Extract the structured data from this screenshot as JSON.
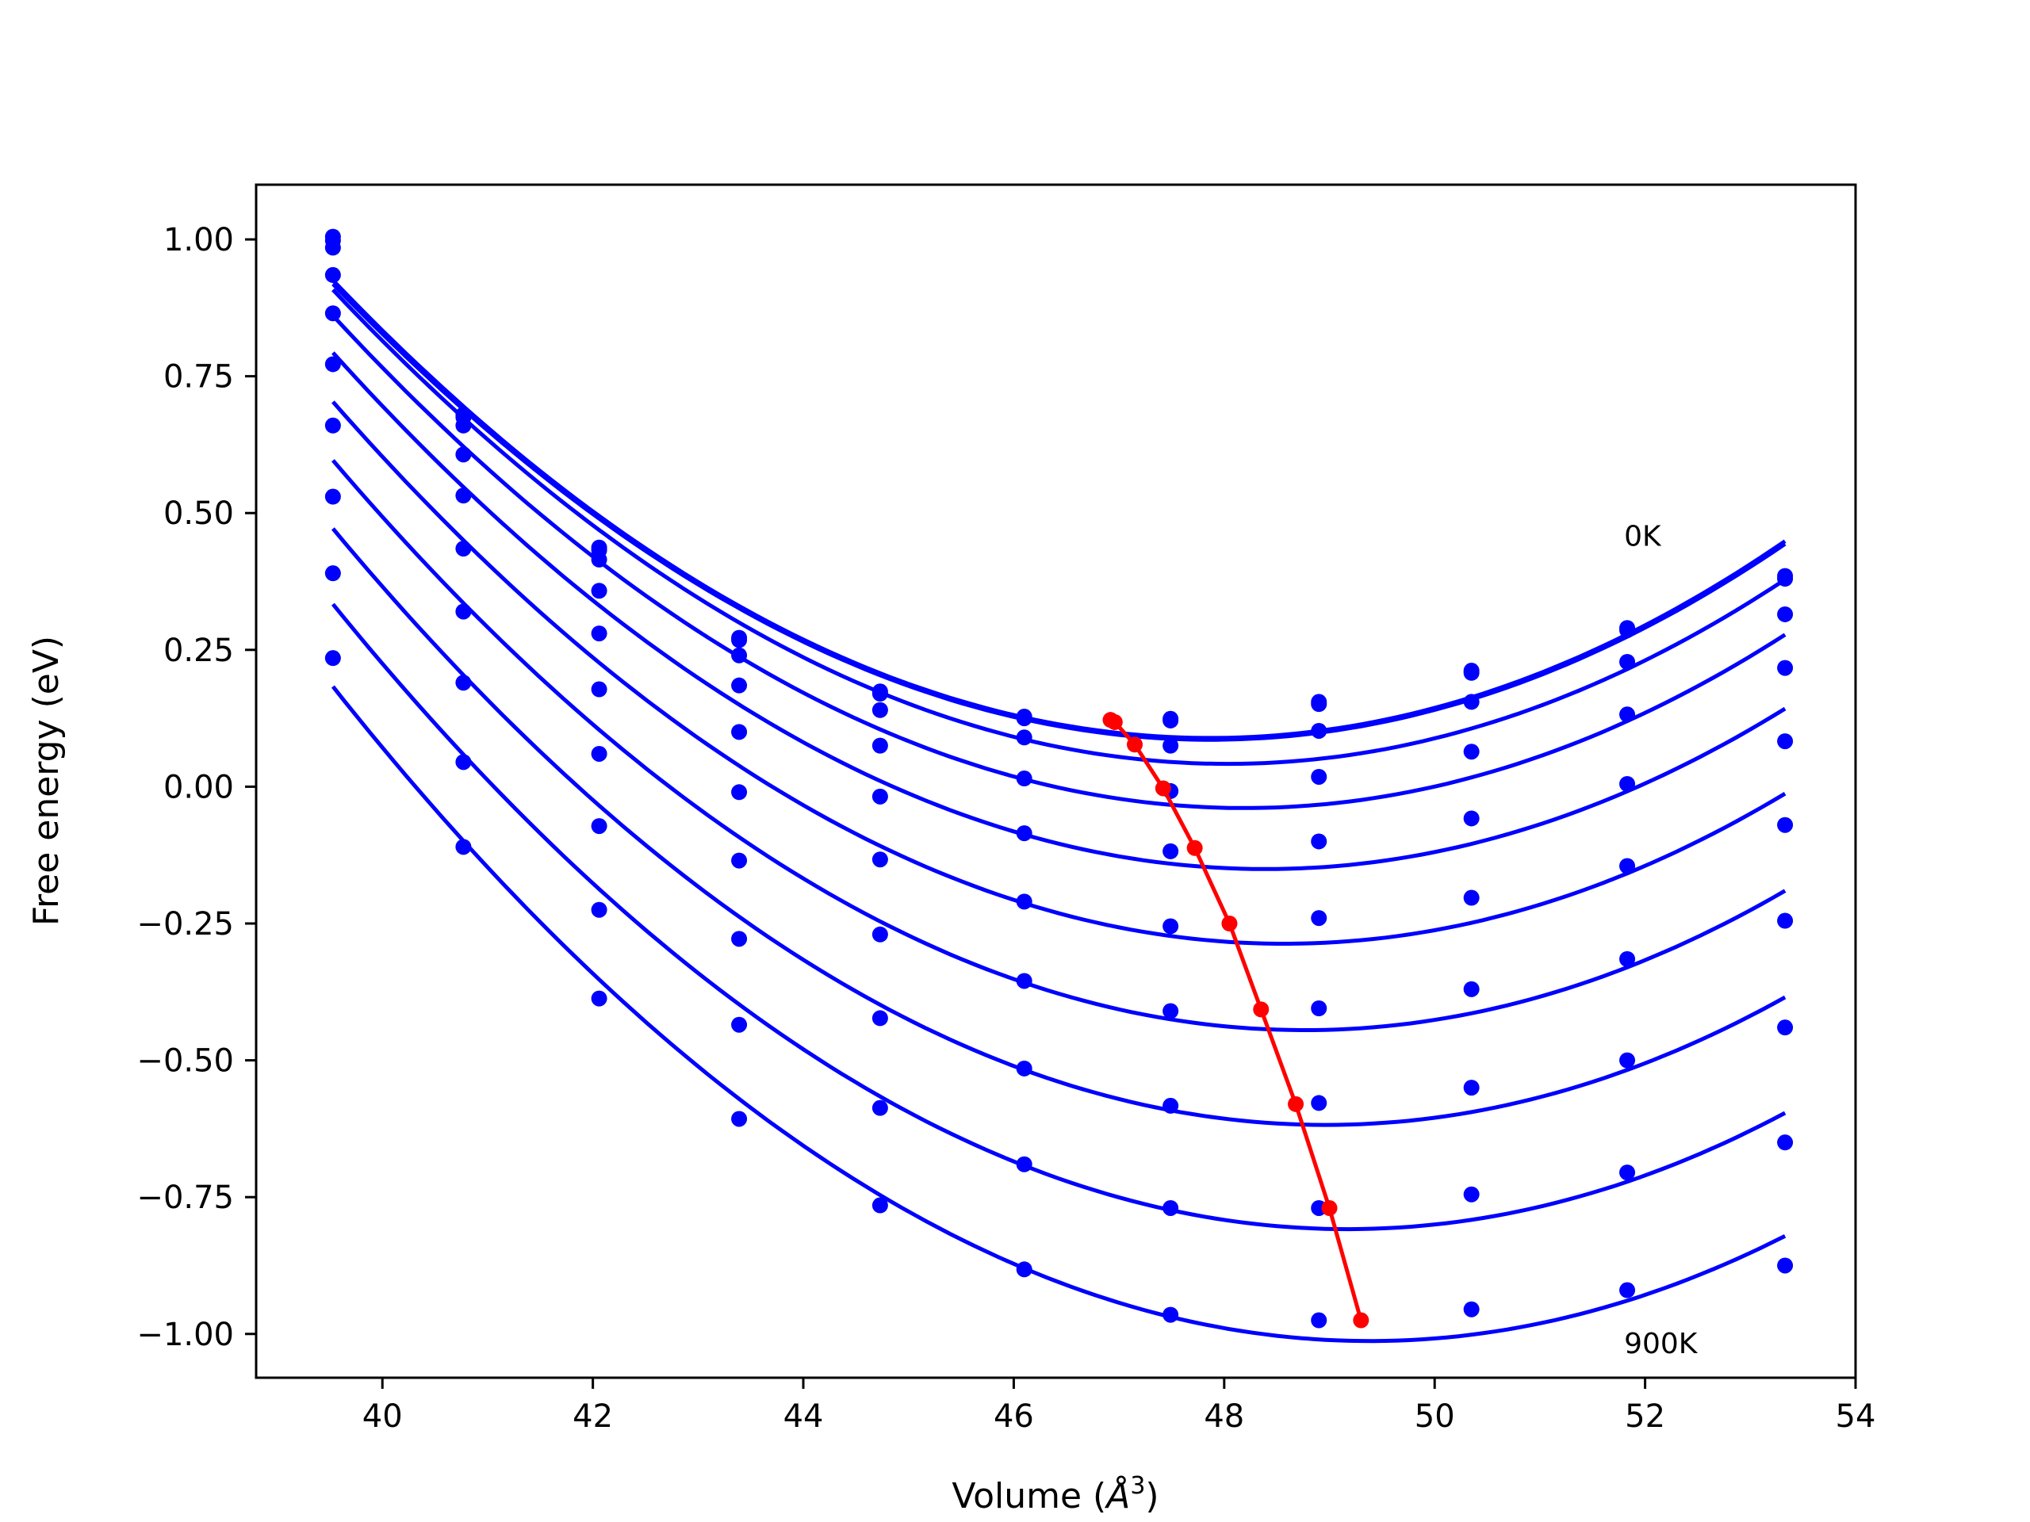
{
  "chart_data": {
    "type": "line",
    "xlabel_text": "Volume (",
    "xlabel_unit": "Å",
    "xlabel_exp": "3",
    "xlabel_close": ")",
    "ylabel": "Free energy (eV)",
    "xlim": [
      38.8,
      54.0
    ],
    "ylim": [
      -1.08,
      1.1
    ],
    "x_ticks": [
      40,
      42,
      44,
      46,
      48,
      50,
      52,
      54
    ],
    "x_tick_labels": [
      "40",
      "42",
      "44",
      "46",
      "48",
      "50",
      "52",
      "54"
    ],
    "y_ticks": [
      1.0,
      0.75,
      0.5,
      0.25,
      0.0,
      -0.25,
      -0.5,
      -0.75,
      -1.0
    ],
    "y_tick_labels": [
      "1.00",
      "0.75",
      "0.50",
      "0.25",
      "0.00",
      "−0.25",
      "−0.50",
      "−0.75",
      "−1.00"
    ],
    "grid": false,
    "annotations": [
      {
        "text": "0K",
        "x": 51.8,
        "y": 0.44
      },
      {
        "text": "900K",
        "x": 51.8,
        "y": -1.035
      }
    ],
    "volumes": [
      39.53,
      40.77,
      42.06,
      43.39,
      44.73,
      46.1,
      47.49,
      48.9,
      50.35,
      51.83,
      53.33
    ],
    "curve_color": "#0000ff",
    "minimum_line_color": "#ff0000",
    "series": [
      {
        "values": [
          1.005,
          0.68,
          0.437,
          0.272,
          0.174,
          0.128,
          0.124,
          0.155,
          0.212,
          0.29,
          0.385
        ]
      },
      {
        "values": [
          0.998,
          0.675,
          0.432,
          0.268,
          0.17,
          0.125,
          0.121,
          0.151,
          0.208,
          0.286,
          0.38
        ]
      },
      {
        "values": [
          0.985,
          0.66,
          0.415,
          0.24,
          0.14,
          0.09,
          0.075,
          0.102,
          0.155,
          0.228,
          0.315
        ]
      },
      {
        "values": [
          0.935,
          0.607,
          0.358,
          0.185,
          0.075,
          0.015,
          -0.008,
          0.018,
          0.064,
          0.132,
          0.217
        ]
      },
      {
        "values": [
          0.865,
          0.532,
          0.28,
          0.1,
          -0.018,
          -0.085,
          -0.118,
          -0.1,
          -0.058,
          0.005,
          0.083
        ]
      },
      {
        "values": [
          0.772,
          0.435,
          0.178,
          -0.01,
          -0.133,
          -0.21,
          -0.255,
          -0.24,
          -0.203,
          -0.145,
          -0.07
        ]
      },
      {
        "values": [
          0.66,
          0.32,
          0.06,
          -0.135,
          -0.27,
          -0.355,
          -0.41,
          -0.405,
          -0.37,
          -0.315,
          -0.245
        ]
      },
      {
        "values": [
          0.53,
          0.19,
          -0.072,
          -0.278,
          -0.423,
          -0.515,
          -0.583,
          -0.578,
          -0.55,
          -0.5,
          -0.44
        ]
      },
      {
        "values": [
          0.39,
          0.045,
          -0.225,
          -0.435,
          -0.587,
          -0.69,
          -0.77,
          -0.77,
          -0.745,
          -0.705,
          -0.65
        ]
      },
      {
        "values": [
          0.235,
          -0.11,
          -0.387,
          -0.607,
          -0.765,
          -0.882,
          -0.965,
          -0.975,
          -0.955,
          -0.92,
          -0.875
        ]
      }
    ],
    "minimum_line": {
      "x": [
        46.92,
        46.96,
        47.15,
        47.42,
        47.72,
        48.05,
        48.35,
        48.68,
        49.0,
        49.3
      ],
      "y": [
        0.122,
        0.118,
        0.077,
        -0.003,
        -0.112,
        -0.25,
        -0.407,
        -0.58,
        -0.77,
        -0.975
      ]
    }
  }
}
